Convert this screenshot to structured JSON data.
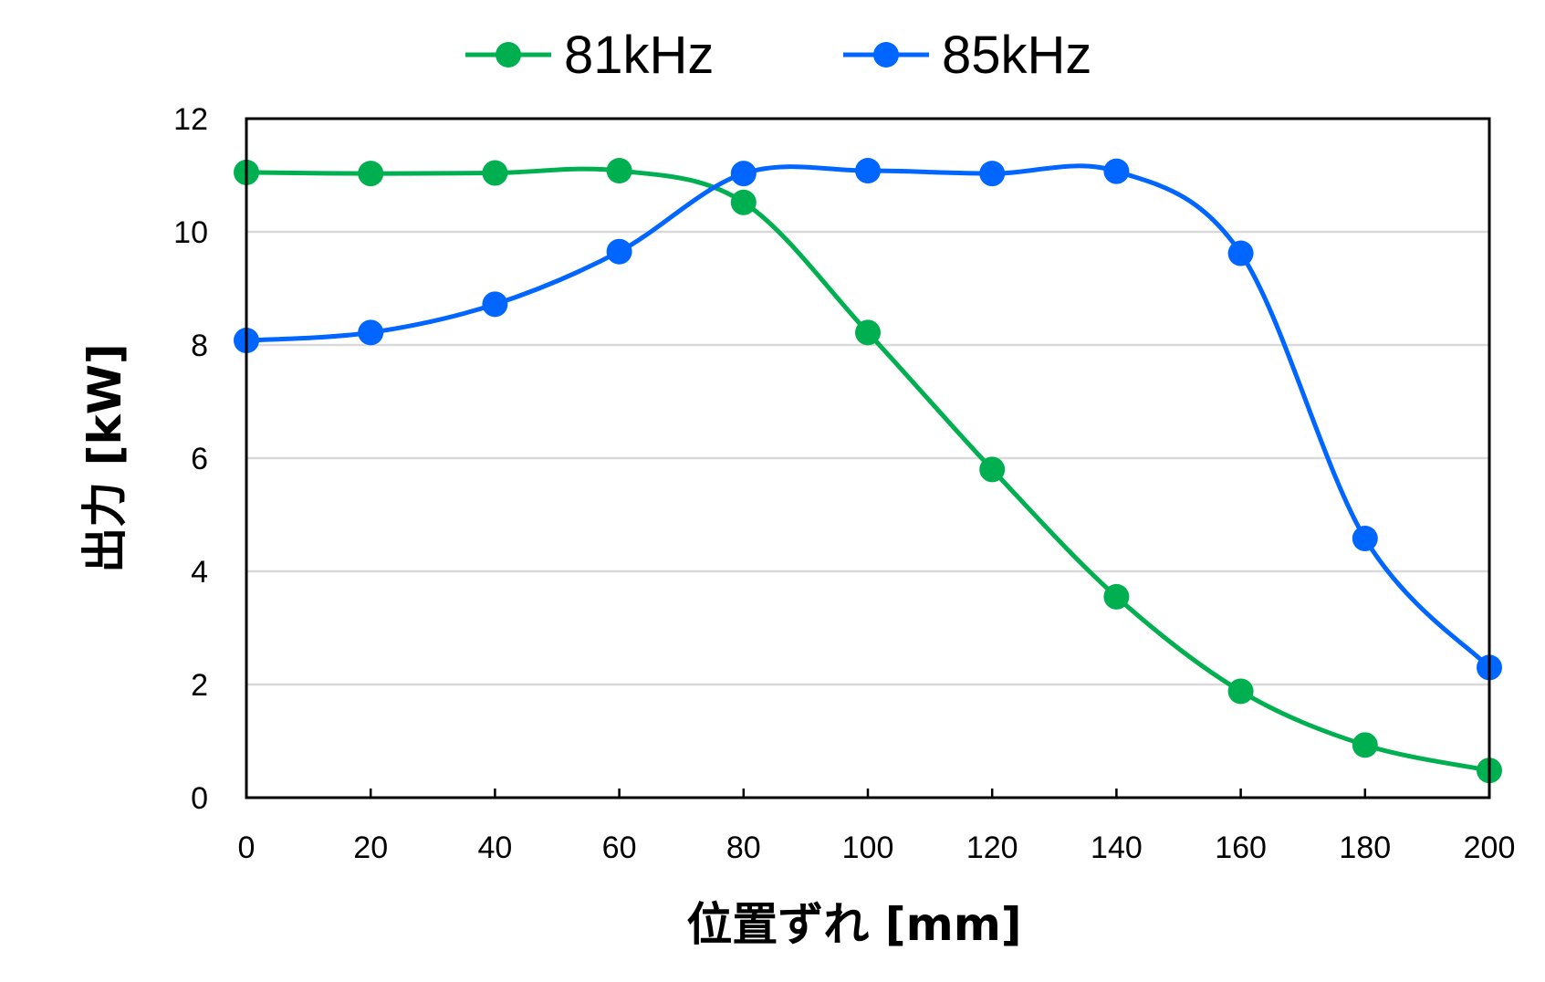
{
  "chart_data": {
    "type": "line",
    "title": "",
    "xlabel": "位置ずれ [mm]",
    "ylabel": "出力 [kW]",
    "x": [
      0,
      20,
      40,
      60,
      80,
      100,
      120,
      140,
      160,
      180,
      200
    ],
    "x_ticks": [
      "0",
      "20",
      "40",
      "60",
      "80",
      "100",
      "120",
      "140",
      "160",
      "180",
      "200"
    ],
    "y_ticks": [
      "0",
      "2",
      "4",
      "6",
      "8",
      "10",
      "12"
    ],
    "xlim": [
      0,
      200
    ],
    "ylim": [
      0,
      12
    ],
    "grid": "horizontal",
    "legend": "top",
    "smooth": true,
    "series": [
      {
        "name": "81kHz",
        "color": "#00b050",
        "values": [
          11.05,
          11.03,
          11.04,
          11.08,
          10.52,
          8.22,
          5.8,
          3.55,
          1.88,
          0.93,
          0.48
        ]
      },
      {
        "name": "85kHz",
        "color": "#0066ff",
        "values": [
          8.08,
          8.22,
          8.72,
          9.65,
          11.03,
          11.08,
          11.03,
          11.07,
          9.62,
          4.58,
          2.3
        ]
      }
    ]
  }
}
